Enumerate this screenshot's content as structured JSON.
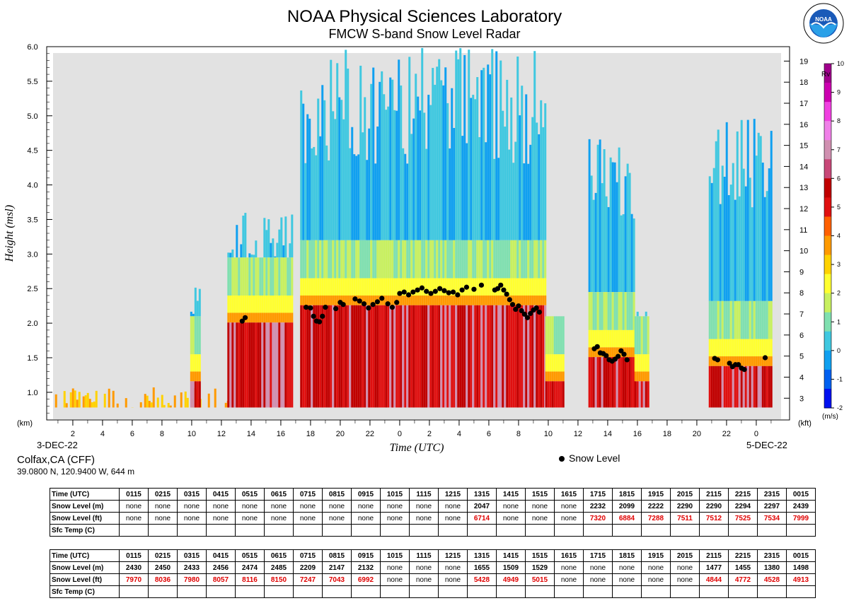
{
  "header": {
    "title": "NOAA Physical Sciences Laboratory",
    "subtitle": "FMCW S-band Snow Level Radar",
    "logo_text": "NOAA"
  },
  "site": {
    "name": "Colfax,CA (CFF)",
    "coords": "39.0800 N, 120.9400 W, 644 m"
  },
  "legend": {
    "snow_level": "Snow Level"
  },
  "colorbar": {
    "title": "Rv",
    "unit": "(m/s)",
    "ticks": [
      "10",
      "9",
      "8",
      "7",
      "6",
      "5",
      "4",
      "3",
      "2",
      "1",
      "0",
      "-1",
      "-2"
    ],
    "colors": [
      "#a0008c",
      "#cc00b0",
      "#f040e0",
      "#f080e8",
      "#d090b0",
      "#c84878",
      "#c00000",
      "#e01010",
      "#ff6000",
      "#ff9a00",
      "#ffd200",
      "#ffff30",
      "#c8f060",
      "#80e0b0",
      "#40c8e0",
      "#10a0f0",
      "#0060f0",
      "#0010f0"
    ]
  },
  "chart_data": {
    "type": "heatmap",
    "title": "NOAA Physical Sciences Laboratory",
    "subtitle": "FMCW S-band Snow Level Radar",
    "xlabel": "Time (UTC)",
    "ylabel": "Height (msl)",
    "ylabel_unit": "(km)",
    "y2_unit": "(kft)",
    "ylim": [
      0.6,
      6.0
    ],
    "y_ticks": [
      "1.0",
      "1.5",
      "2.0",
      "2.5",
      "3.0",
      "3.5",
      "4.0",
      "4.5",
      "5.0",
      "5.5",
      "6.0"
    ],
    "y2_ticks": [
      "3",
      "4",
      "5",
      "6",
      "7",
      "8",
      "9",
      "10",
      "11",
      "12",
      "13",
      "14",
      "15",
      "16",
      "17",
      "18",
      "19"
    ],
    "x_tick_labels": [
      "2",
      "4",
      "6",
      "8",
      "10",
      "12",
      "14",
      "16",
      "18",
      "20",
      "22",
      "0",
      "2",
      "4",
      "6",
      "8",
      "10",
      "12",
      "14",
      "16",
      "18",
      "20",
      "22",
      "0"
    ],
    "start_date_label": "3-DEC-22",
    "end_date_label": "5-DEC-22",
    "xlim_hours": [
      0.67,
      49
    ],
    "snow_level_points": [
      {
        "t": 13.4,
        "h": 2.03
      },
      {
        "t": 13.6,
        "h": 2.08
      },
      {
        "t": 17.7,
        "h": 2.23
      },
      {
        "t": 18.0,
        "h": 2.22
      },
      {
        "t": 18.2,
        "h": 2.1
      },
      {
        "t": 18.4,
        "h": 2.03
      },
      {
        "t": 18.6,
        "h": 2.02
      },
      {
        "t": 18.8,
        "h": 2.1
      },
      {
        "t": 19.0,
        "h": 2.23
      },
      {
        "t": 19.7,
        "h": 2.21
      },
      {
        "t": 20.0,
        "h": 2.3
      },
      {
        "t": 20.2,
        "h": 2.27
      },
      {
        "t": 21.0,
        "h": 2.35
      },
      {
        "t": 21.3,
        "h": 2.32
      },
      {
        "t": 21.6,
        "h": 2.28
      },
      {
        "t": 21.9,
        "h": 2.22
      },
      {
        "t": 22.2,
        "h": 2.27
      },
      {
        "t": 22.5,
        "h": 2.31
      },
      {
        "t": 22.8,
        "h": 2.36
      },
      {
        "t": 23.2,
        "h": 2.28
      },
      {
        "t": 23.5,
        "h": 2.23
      },
      {
        "t": 23.8,
        "h": 2.3
      },
      {
        "t": 24.0,
        "h": 2.43
      },
      {
        "t": 24.3,
        "h": 2.45
      },
      {
        "t": 24.6,
        "h": 2.41
      },
      {
        "t": 24.9,
        "h": 2.45
      },
      {
        "t": 25.2,
        "h": 2.48
      },
      {
        "t": 25.5,
        "h": 2.51
      },
      {
        "t": 25.8,
        "h": 2.46
      },
      {
        "t": 26.1,
        "h": 2.43
      },
      {
        "t": 26.4,
        "h": 2.46
      },
      {
        "t": 26.7,
        "h": 2.5
      },
      {
        "t": 27.0,
        "h": 2.47
      },
      {
        "t": 27.3,
        "h": 2.44
      },
      {
        "t": 27.6,
        "h": 2.45
      },
      {
        "t": 27.9,
        "h": 2.41
      },
      {
        "t": 28.2,
        "h": 2.48
      },
      {
        "t": 28.5,
        "h": 2.52
      },
      {
        "t": 29.0,
        "h": 2.49
      },
      {
        "t": 29.5,
        "h": 2.55
      },
      {
        "t": 30.4,
        "h": 2.48
      },
      {
        "t": 30.6,
        "h": 2.5
      },
      {
        "t": 30.8,
        "h": 2.55
      },
      {
        "t": 31.0,
        "h": 2.48
      },
      {
        "t": 31.2,
        "h": 2.42
      },
      {
        "t": 31.4,
        "h": 2.34
      },
      {
        "t": 31.6,
        "h": 2.27
      },
      {
        "t": 31.8,
        "h": 2.2
      },
      {
        "t": 32.0,
        "h": 2.25
      },
      {
        "t": 32.2,
        "h": 2.18
      },
      {
        "t": 32.4,
        "h": 2.13
      },
      {
        "t": 32.6,
        "h": 2.08
      },
      {
        "t": 32.8,
        "h": 2.14
      },
      {
        "t": 33.0,
        "h": 2.19
      },
      {
        "t": 33.2,
        "h": 2.22
      },
      {
        "t": 33.4,
        "h": 2.16
      },
      {
        "t": 37.1,
        "h": 1.63
      },
      {
        "t": 37.3,
        "h": 1.66
      },
      {
        "t": 37.5,
        "h": 1.57
      },
      {
        "t": 37.7,
        "h": 1.56
      },
      {
        "t": 37.9,
        "h": 1.53
      },
      {
        "t": 38.1,
        "h": 1.47
      },
      {
        "t": 38.3,
        "h": 1.45
      },
      {
        "t": 38.5,
        "h": 1.48
      },
      {
        "t": 38.7,
        "h": 1.52
      },
      {
        "t": 38.9,
        "h": 1.6
      },
      {
        "t": 39.1,
        "h": 1.55
      },
      {
        "t": 39.3,
        "h": 1.47
      },
      {
        "t": 45.2,
        "h": 1.49
      },
      {
        "t": 45.4,
        "h": 1.47
      },
      {
        "t": 46.2,
        "h": 1.42
      },
      {
        "t": 46.4,
        "h": 1.37
      },
      {
        "t": 46.6,
        "h": 1.4
      },
      {
        "t": 46.8,
        "h": 1.4
      },
      {
        "t": 47.0,
        "h": 1.35
      },
      {
        "t": 47.2,
        "h": 1.33
      },
      {
        "t": 48.6,
        "h": 1.5
      }
    ],
    "echo_regions": [
      {
        "t0": 0.8,
        "t1": 12.5,
        "top": 0.9,
        "kind": "low"
      },
      {
        "t0": 9.9,
        "t1": 10.5,
        "top": 2.6,
        "kind": "conv"
      },
      {
        "t0": 12.4,
        "t1": 16.8,
        "top": 3.6,
        "kind": "rain",
        "melt": 2.05
      },
      {
        "t0": 17.3,
        "t1": 33.8,
        "top": 6.0,
        "kind": "rain",
        "melt": 2.3
      },
      {
        "t0": 33.8,
        "t1": 35.0,
        "top": 2.2,
        "kind": "conv"
      },
      {
        "t0": 36.7,
        "t1": 39.8,
        "top": 4.7,
        "kind": "rain",
        "melt": 1.55
      },
      {
        "t0": 39.8,
        "t1": 40.8,
        "top": 2.2,
        "kind": "conv"
      },
      {
        "t0": 44.8,
        "t1": 49.0,
        "top": 5.0,
        "kind": "rain",
        "melt": 1.42
      }
    ]
  },
  "tables": [
    {
      "rows": [
        {
          "label": "Time (UTC)",
          "style": "num",
          "values": [
            "0115",
            "0215",
            "0315",
            "0415",
            "0515",
            "0615",
            "0715",
            "0815",
            "0915",
            "1015",
            "1115",
            "1215",
            "1315",
            "1415",
            "1515",
            "1615",
            "1715",
            "1815",
            "1915",
            "2015",
            "2115",
            "2215",
            "2315",
            "0015"
          ]
        },
        {
          "label": "Snow Level (m)",
          "style": "num",
          "values": [
            "none",
            "none",
            "none",
            "none",
            "none",
            "none",
            "none",
            "none",
            "none",
            "none",
            "none",
            "none",
            "2047",
            "none",
            "none",
            "none",
            "2232",
            "2099",
            "2222",
            "2290",
            "2290",
            "2294",
            "2297",
            "2439"
          ]
        },
        {
          "label": "Snow Level (ft)",
          "style": "red",
          "values": [
            "none",
            "none",
            "none",
            "none",
            "none",
            "none",
            "none",
            "none",
            "none",
            "none",
            "none",
            "none",
            "6714",
            "none",
            "none",
            "none",
            "7320",
            "6884",
            "7288",
            "7511",
            "7512",
            "7525",
            "7534",
            "7999"
          ]
        },
        {
          "label": "Sfc Temp (C)",
          "style": "num",
          "values": [
            "",
            "",
            "",
            "",
            "",
            "",
            "",
            "",
            "",
            "",
            "",
            "",
            "",
            "",
            "",
            "",
            "",
            "",
            "",
            "",
            "",
            "",
            "",
            ""
          ]
        }
      ]
    },
    {
      "rows": [
        {
          "label": "Time (UTC)",
          "style": "num",
          "values": [
            "0115",
            "0215",
            "0315",
            "0415",
            "0515",
            "0615",
            "0715",
            "0815",
            "0915",
            "1015",
            "1115",
            "1215",
            "1315",
            "1415",
            "1515",
            "1615",
            "1715",
            "1815",
            "1915",
            "2015",
            "2115",
            "2215",
            "2315",
            "0015"
          ]
        },
        {
          "label": "Snow Level (m)",
          "style": "num",
          "values": [
            "2430",
            "2450",
            "2433",
            "2456",
            "2474",
            "2485",
            "2209",
            "2147",
            "2132",
            "none",
            "none",
            "none",
            "1655",
            "1509",
            "1529",
            "none",
            "none",
            "none",
            "none",
            "none",
            "1477",
            "1455",
            "1380",
            "1498"
          ]
        },
        {
          "label": "Snow Level (ft)",
          "style": "red",
          "values": [
            "7970",
            "8036",
            "7980",
            "8057",
            "8116",
            "8150",
            "7247",
            "7043",
            "6992",
            "none",
            "none",
            "none",
            "5428",
            "4949",
            "5015",
            "none",
            "none",
            "none",
            "none",
            "none",
            "4844",
            "4772",
            "4528",
            "4913"
          ]
        },
        {
          "label": "Sfc Temp (C)",
          "style": "num",
          "values": [
            "",
            "",
            "",
            "",
            "",
            "",
            "",
            "",
            "",
            "",
            "",
            "",
            "",
            "",
            "",
            "",
            "",
            "",
            "",
            "",
            "",
            "",
            "",
            ""
          ]
        }
      ]
    }
  ]
}
